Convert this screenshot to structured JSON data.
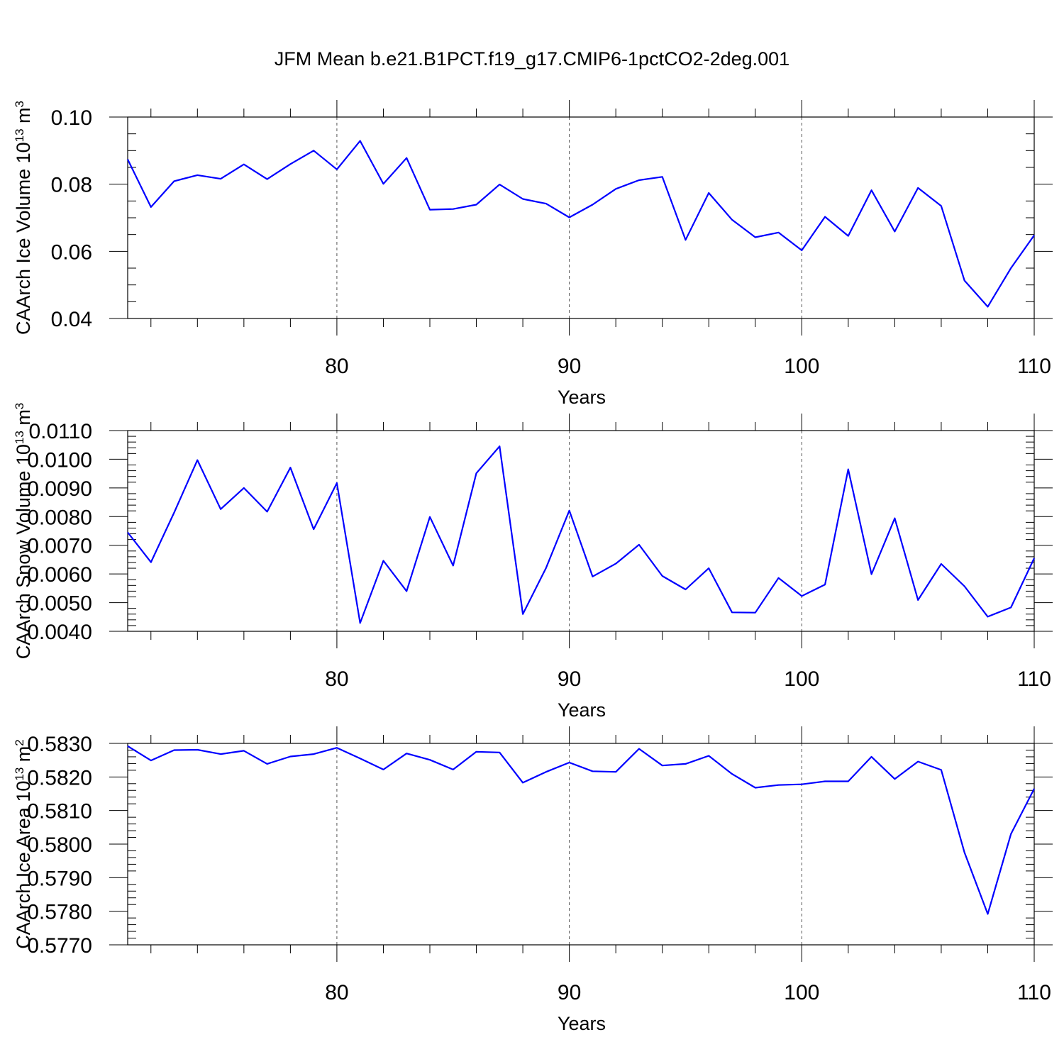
{
  "figure": {
    "title": "JFM Mean b.e21.B1PCT.f19_g17.CMIP6-1pctCO2-2deg.001",
    "line_color": "#0000ff"
  },
  "chart_data": [
    {
      "type": "line",
      "ylabel": "CAArch Ice Volume 10",
      "ylabel_exponent": "13",
      "ylabel_unit": " m",
      "ylabel_unit_exponent": "3",
      "xlabel": "Years",
      "xlim": [
        71,
        110
      ],
      "ylim": [
        0.04,
        0.1
      ],
      "xticks": [
        80,
        90,
        100,
        110
      ],
      "xtick_labels": [
        "80",
        "90",
        "100",
        "110"
      ],
      "yticks": [
        0.04,
        0.06,
        0.08,
        0.1
      ],
      "ytick_labels": [
        "0.04",
        "0.06",
        "0.08",
        "0.10"
      ],
      "y_minor_step": 0.005,
      "x": [
        71,
        72,
        73,
        74,
        75,
        76,
        77,
        78,
        79,
        80,
        81,
        82,
        83,
        84,
        85,
        86,
        87,
        88,
        89,
        90,
        91,
        92,
        93,
        94,
        95,
        96,
        97,
        98,
        99,
        100,
        101,
        102,
        103,
        104,
        105,
        106,
        107,
        108,
        109,
        110
      ],
      "values": [
        0.0874,
        0.0732,
        0.0809,
        0.0827,
        0.0816,
        0.0859,
        0.0815,
        0.086,
        0.09,
        0.0844,
        0.0929,
        0.0801,
        0.0878,
        0.0724,
        0.0726,
        0.0739,
        0.0799,
        0.0756,
        0.0742,
        0.0701,
        0.0739,
        0.0786,
        0.0812,
        0.0822,
        0.0634,
        0.0774,
        0.0694,
        0.0642,
        0.0656,
        0.0603,
        0.0703,
        0.0646,
        0.0782,
        0.0659,
        0.0789,
        0.0735,
        0.0513,
        0.0435,
        0.055,
        0.0648
      ]
    },
    {
      "type": "line",
      "ylabel": "CAArch Snow Volume 10",
      "ylabel_exponent": "13",
      "ylabel_unit": " m",
      "ylabel_unit_exponent": "3",
      "xlabel": "Years",
      "xlim": [
        71,
        110
      ],
      "ylim": [
        0.004,
        0.011
      ],
      "xticks": [
        80,
        90,
        100,
        110
      ],
      "xtick_labels": [
        "80",
        "90",
        "100",
        "110"
      ],
      "yticks": [
        0.004,
        0.005,
        0.006,
        0.007,
        0.008,
        0.009,
        0.01,
        0.011
      ],
      "ytick_labels": [
        "0.0040",
        "0.0050",
        "0.0060",
        "0.0070",
        "0.0080",
        "0.0090",
        "0.0100",
        "0.0110"
      ],
      "y_minor_step": 0.0002,
      "x": [
        71,
        72,
        73,
        74,
        75,
        76,
        77,
        78,
        79,
        80,
        81,
        82,
        83,
        84,
        85,
        86,
        87,
        88,
        89,
        90,
        91,
        92,
        93,
        94,
        95,
        96,
        97,
        98,
        99,
        100,
        101,
        102,
        103,
        104,
        105,
        106,
        107,
        108,
        109,
        110
      ],
      "values": [
        0.00745,
        0.00641,
        0.00814,
        0.00997,
        0.00826,
        0.009,
        0.00817,
        0.00971,
        0.00756,
        0.00917,
        0.00429,
        0.00646,
        0.0054,
        0.00799,
        0.00629,
        0.00951,
        0.01045,
        0.0046,
        0.00621,
        0.00821,
        0.00591,
        0.00636,
        0.00702,
        0.00593,
        0.00546,
        0.0062,
        0.00466,
        0.00465,
        0.00586,
        0.00523,
        0.00563,
        0.00965,
        0.00599,
        0.00794,
        0.00509,
        0.00635,
        0.00557,
        0.00451,
        0.00483,
        0.00655
      ]
    },
    {
      "type": "line",
      "ylabel": "CAArch Ice Area 10",
      "ylabel_exponent": "13",
      "ylabel_unit": " m",
      "ylabel_unit_exponent": "2",
      "xlabel": "Years",
      "xlim": [
        71,
        110
      ],
      "ylim": [
        0.577,
        0.583
      ],
      "xticks": [
        80,
        90,
        100,
        110
      ],
      "xtick_labels": [
        "80",
        "90",
        "100",
        "110"
      ],
      "yticks": [
        0.577,
        0.578,
        0.579,
        0.58,
        0.581,
        0.582,
        0.583
      ],
      "ytick_labels": [
        "0.5770",
        "0.5780",
        "0.5790",
        "0.5800",
        "0.5810",
        "0.5820",
        "0.5830"
      ],
      "y_minor_step": 0.0002,
      "x": [
        71,
        72,
        73,
        74,
        75,
        76,
        77,
        78,
        79,
        80,
        81,
        82,
        83,
        84,
        85,
        86,
        87,
        88,
        89,
        90,
        91,
        92,
        93,
        94,
        95,
        96,
        97,
        98,
        99,
        100,
        101,
        102,
        103,
        104,
        105,
        106,
        107,
        108,
        109,
        110
      ],
      "values": [
        0.58292,
        0.58249,
        0.5828,
        0.58281,
        0.58268,
        0.58278,
        0.58239,
        0.58261,
        0.58268,
        0.58287,
        0.58255,
        0.58222,
        0.5827,
        0.58251,
        0.58222,
        0.58275,
        0.58273,
        0.58183,
        0.58215,
        0.58243,
        0.58217,
        0.58215,
        0.58284,
        0.58234,
        0.58239,
        0.58263,
        0.58209,
        0.58168,
        0.58176,
        0.58178,
        0.58187,
        0.58187,
        0.5826,
        0.58194,
        0.58246,
        0.58221,
        0.57975,
        0.57792,
        0.5803,
        0.58165
      ]
    }
  ]
}
